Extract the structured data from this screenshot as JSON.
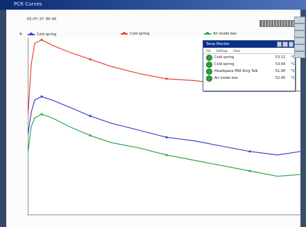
{
  "window": {
    "title": "PCR Curves"
  },
  "header": {
    "time_text": "03:07:37  00:00"
  },
  "legend": {
    "items": [
      {
        "label": "Cold spring",
        "color": "#3447c8"
      },
      {
        "label": "Cold spring",
        "color": "#e5443a"
      },
      {
        "label": "Air inside box",
        "color": "#2ea64a"
      }
    ]
  },
  "popup": {
    "title": "Temp Monitor",
    "menu": [
      "File",
      "Settings",
      "View"
    ],
    "rows": [
      {
        "name": "Cold spring",
        "value": "53.11",
        "unit": "°C"
      },
      {
        "name": "Cold spring",
        "value": "53.64",
        "unit": "°C"
      },
      {
        "name": "Headspace PAR Ring Talk",
        "value": "51.08",
        "unit": "°C"
      },
      {
        "name": "Air inside box",
        "value": "52.95",
        "unit": "°C"
      }
    ]
  },
  "colors": {
    "red": "#e5443a",
    "blue": "#3447c8",
    "green": "#2ea64a"
  },
  "icons": {
    "close": "close-icon",
    "minimize": "minimize-icon",
    "maximize": "maximize-icon"
  },
  "chart_data": {
    "type": "line",
    "series": [
      {
        "name": "Cold spring",
        "color": "#e5443a",
        "x": [
          0,
          5,
          10,
          20,
          35,
          60,
          90,
          120,
          160,
          200,
          240,
          280,
          320,
          360,
          393
        ],
        "y": [
          0.55,
          0.85,
          0.97,
          0.99,
          0.96,
          0.92,
          0.88,
          0.84,
          0.8,
          0.77,
          0.76,
          0.74,
          0.72,
          0.71,
          0.7
        ]
      },
      {
        "name": "Cold spring",
        "color": "#3447c8",
        "x": [
          0,
          5,
          10,
          20,
          35,
          60,
          90,
          120,
          160,
          200,
          240,
          280,
          320,
          360,
          393
        ],
        "y": [
          0.45,
          0.58,
          0.65,
          0.67,
          0.65,
          0.61,
          0.56,
          0.52,
          0.48,
          0.44,
          0.42,
          0.39,
          0.36,
          0.34,
          0.36
        ]
      },
      {
        "name": "Air inside box",
        "color": "#2ea64a",
        "x": [
          0,
          5,
          10,
          20,
          35,
          60,
          90,
          120,
          160,
          200,
          240,
          280,
          320,
          360,
          393
        ],
        "y": [
          0.35,
          0.5,
          0.55,
          0.57,
          0.55,
          0.5,
          0.45,
          0.41,
          0.38,
          0.34,
          0.31,
          0.28,
          0.25,
          0.22,
          0.23
        ]
      }
    ]
  }
}
